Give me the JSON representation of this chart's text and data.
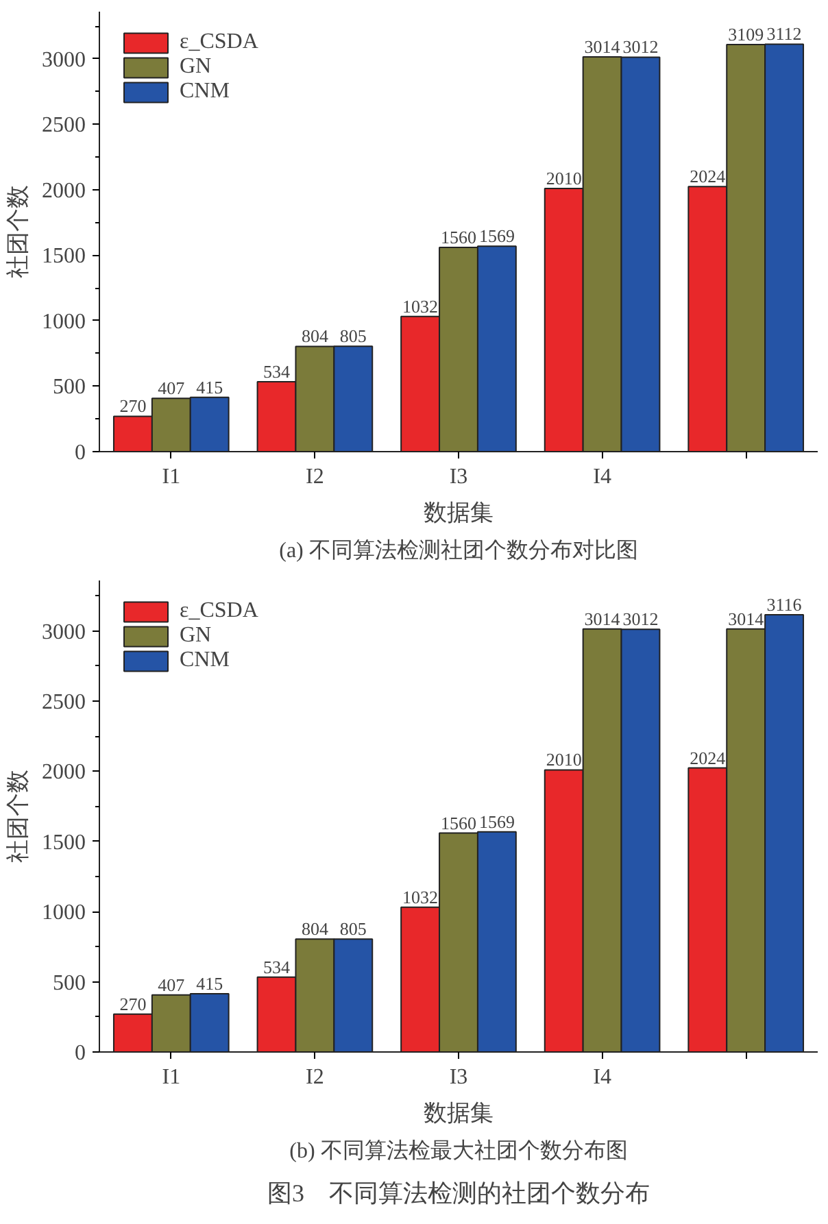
{
  "chart_data": [
    {
      "type": "bar",
      "title": "(a) 不同算法检测社团个数分布对比图",
      "xlabel": "数据集",
      "ylabel": "社团个数",
      "categories": [
        "I1",
        "I2",
        "I3",
        "I4",
        null
      ],
      "series": [
        {
          "name": "ε_CSDA",
          "color": "#e8282a",
          "values": [
            270,
            534,
            1032,
            2010,
            2024
          ]
        },
        {
          "name": "GN",
          "color": "#7b7b3a",
          "values": [
            407,
            804,
            1560,
            3014,
            3109
          ]
        },
        {
          "name": "CNM",
          "color": "#2554a6",
          "values": [
            415,
            805,
            1569,
            3012,
            3112
          ]
        }
      ],
      "ylim": [
        0,
        3360
      ],
      "yticks": [
        0,
        500,
        1000,
        1500,
        2000,
        2500,
        3000
      ],
      "data_labels": true,
      "legend": "top left",
      "grid": false
    },
    {
      "type": "bar",
      "title": "(b) 不同算法检最大社团个数分布图",
      "xlabel": "数据集",
      "ylabel": "社团个数",
      "categories": [
        "I1",
        "I2",
        "I3",
        "I4",
        null
      ],
      "series": [
        {
          "name": "ε_CSDA",
          "color": "#e8282a",
          "values": [
            270,
            534,
            1032,
            2010,
            2024
          ]
        },
        {
          "name": "GN",
          "color": "#7b7b3a",
          "values": [
            407,
            804,
            1560,
            3014,
            3014
          ]
        },
        {
          "name": "CNM",
          "color": "#2554a6",
          "values": [
            415,
            805,
            1569,
            3012,
            3116
          ]
        }
      ],
      "ylim": [
        0,
        3360
      ],
      "yticks": [
        0,
        500,
        1000,
        1500,
        2000,
        2500,
        3000
      ],
      "data_labels": true,
      "legend": "top left",
      "grid": false,
      "annotations": [
        "图3　不同算法检测的社团个数分布"
      ]
    }
  ]
}
